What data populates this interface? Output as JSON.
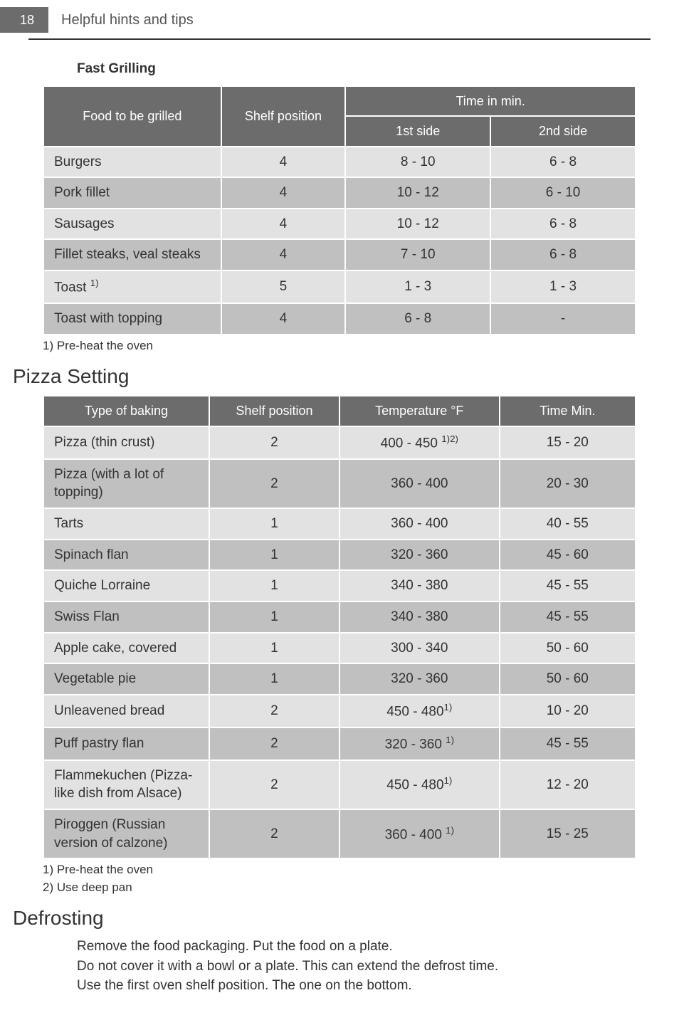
{
  "header": {
    "page_number": "18",
    "section": "Helpful hints and tips"
  },
  "fast_grilling": {
    "heading": "Fast Grilling",
    "columns": {
      "food": "Food to be grilled",
      "shelf": "Shelf position",
      "time_group": "Time in min.",
      "side1": "1st side",
      "side2": "2nd side"
    },
    "rows": [
      {
        "food": "Burgers",
        "shelf": "4",
        "side1": "8 - 10",
        "side2": "6 - 8"
      },
      {
        "food": "Pork fillet",
        "shelf": "4",
        "side1": "10 - 12",
        "side2": "6 - 10"
      },
      {
        "food": "Sausages",
        "shelf": "4",
        "side1": "10 - 12",
        "side2": "6 - 8"
      },
      {
        "food": "Fillet steaks, veal steaks",
        "shelf": "4",
        "side1": "7 - 10",
        "side2": "6 - 8"
      },
      {
        "food": "Toast ",
        "sup": "1)",
        "shelf": "5",
        "side1": "1 - 3",
        "side2": "1 - 3"
      },
      {
        "food": "Toast with topping",
        "shelf": "4",
        "side1": "6 - 8",
        "side2": "-"
      }
    ],
    "footnote": "1) Pre-heat the oven"
  },
  "pizza": {
    "heading": "Pizza Setting",
    "columns": {
      "type": "Type of baking",
      "shelf": "Shelf position",
      "temp": "Temperature °F",
      "time": "Time Min."
    },
    "rows": [
      {
        "type": "Pizza (thin crust)",
        "shelf": "2",
        "temp": "400 - 450 ",
        "temp_sup": "1)2)",
        "time": "15 - 20"
      },
      {
        "type": "Pizza (with a lot of topping)",
        "shelf": "2",
        "temp": "360 - 400",
        "time": "20 - 30"
      },
      {
        "type": "Tarts",
        "shelf": "1",
        "temp": "360 - 400",
        "time": "40 - 55"
      },
      {
        "type": "Spinach flan",
        "shelf": "1",
        "temp": "320 - 360",
        "time": "45 - 60"
      },
      {
        "type": "Quiche Lorraine",
        "shelf": "1",
        "temp": "340 - 380",
        "time": "45 - 55"
      },
      {
        "type": "Swiss Flan",
        "shelf": "1",
        "temp": "340 - 380",
        "time": "45 - 55"
      },
      {
        "type": "Apple cake, covered",
        "shelf": "1",
        "temp": "300 - 340",
        "time": "50 - 60"
      },
      {
        "type": "Vegetable pie",
        "shelf": "1",
        "temp": "320 - 360",
        "time": "50 - 60"
      },
      {
        "type": "Unleavened bread",
        "shelf": "2",
        "temp": "450 - 480",
        "temp_sup": "1)",
        "time": "10 - 20"
      },
      {
        "type": "Puff pastry flan",
        "shelf": "2",
        "temp": "320 - 360 ",
        "temp_sup": "1)",
        "time": "45 - 55"
      },
      {
        "type": "Flammekuchen (Pizza-like dish from Alsace)",
        "shelf": "2",
        "temp": "450 - 480",
        "temp_sup": "1)",
        "time": "12 - 20"
      },
      {
        "type": "Piroggen (Russian version of calzone)",
        "shelf": "2",
        "temp": "360 - 400 ",
        "temp_sup": "1)",
        "time": "15 - 25"
      }
    ],
    "footnotes": [
      "1) Pre-heat the oven",
      "2) Use deep pan"
    ]
  },
  "defrosting": {
    "heading": "Defrosting",
    "lines": [
      "Remove the food packaging. Put the food on a plate.",
      "Do not cover it with a bowl or a plate. This can extend the defrost time.",
      "Use the first oven shelf position. The one on the bottom."
    ]
  },
  "style": {
    "header_bg": "#6c6c6c",
    "header_fg": "#ffffff",
    "row_odd_bg": "#e2e2e2",
    "row_even_bg": "#c0c0c0",
    "rule_color": "#333333"
  }
}
